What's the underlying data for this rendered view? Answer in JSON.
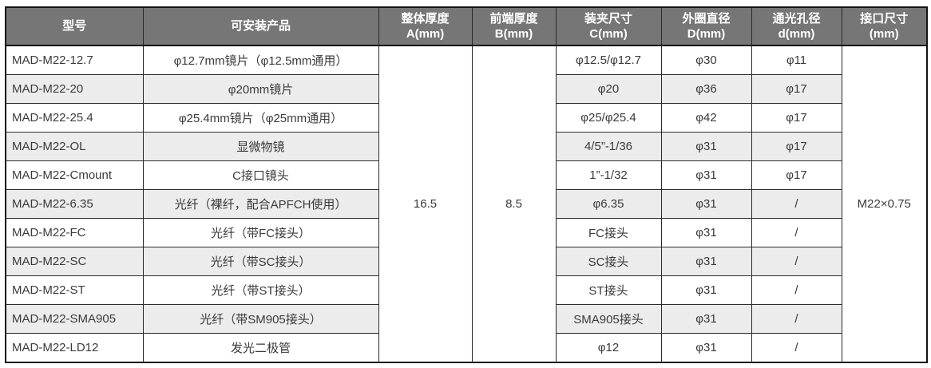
{
  "table": {
    "headers": {
      "model": "型号",
      "product": "可安装产品",
      "thickness_a": "整体厚度\nA(mm)",
      "thickness_b": "前端厚度\nB(mm)",
      "clamp_c": "装夹尺寸\nC(mm)",
      "outer_d": "外圈直径\nD(mm)",
      "aperture_d": "通光孔径\nd(mm)",
      "interface": "接口尺寸\n(mm)"
    },
    "merged": {
      "thickness_a": "16.5",
      "thickness_b": "8.5",
      "interface": "M22×0.75"
    },
    "rows": [
      {
        "model": "MAD-M22-12.7",
        "product": "φ12.7mm镜片（φ12.5mm通用）",
        "clamp": "φ12.5/φ12.7",
        "outer": "φ30",
        "aperture": "φ11"
      },
      {
        "model": "MAD-M22-20",
        "product": "φ20mm镜片",
        "clamp": "φ20",
        "outer": "φ36",
        "aperture": "φ17"
      },
      {
        "model": "MAD-M22-25.4",
        "product": "φ25.4mm镜片（φ25mm通用）",
        "clamp": "φ25/φ25.4",
        "outer": "φ42",
        "aperture": "φ17"
      },
      {
        "model": "MAD-M22-OL",
        "product": "显微物镜",
        "clamp": "4/5”-1/36",
        "outer": "φ31",
        "aperture": "φ17"
      },
      {
        "model": "MAD-M22-Cmount",
        "product": "C接口镜头",
        "clamp": "1”-1/32",
        "outer": "φ31",
        "aperture": "φ17"
      },
      {
        "model": "MAD-M22-6.35",
        "product": "光纤（裸纤，配合APFCH使用）",
        "clamp": "φ6.35",
        "outer": "φ31",
        "aperture": "/"
      },
      {
        "model": "MAD-M22-FC",
        "product": "光纤（带FC接头）",
        "clamp": "FC接头",
        "outer": "φ31",
        "aperture": "/"
      },
      {
        "model": "MAD-M22-SC",
        "product": "光纤（带SC接头）",
        "clamp": "SC接头",
        "outer": "φ31",
        "aperture": "/"
      },
      {
        "model": "MAD-M22-ST",
        "product": "光纤（带ST接头）",
        "clamp": "ST接头",
        "outer": "φ31",
        "aperture": "/"
      },
      {
        "model": "MAD-M22-SMA905",
        "product": "光纤（带SM905接头）",
        "clamp": "SMA905接头",
        "outer": "φ31",
        "aperture": "/"
      },
      {
        "model": "MAD-M22-LD12",
        "product": "发光二极管",
        "clamp": "φ12",
        "outer": "φ31",
        "aperture": "/"
      }
    ],
    "colors": {
      "header_bg": "#767676",
      "header_text": "#ffffff",
      "stripe_bg": "#ececec",
      "border": "#2a2a2a",
      "text": "#3a3a3a"
    }
  }
}
